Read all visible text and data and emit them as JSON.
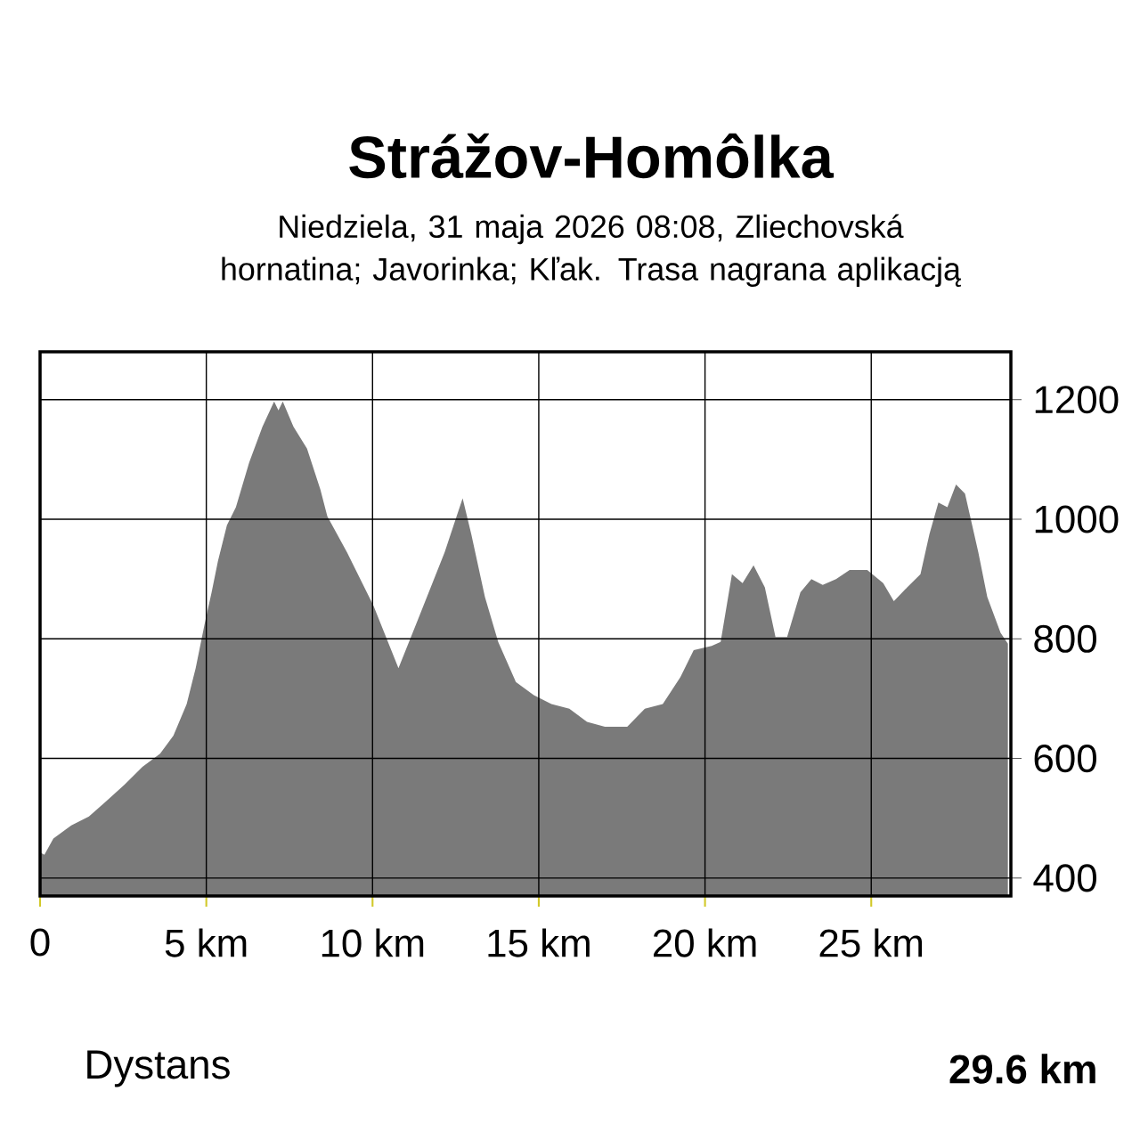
{
  "chart_data": {
    "type": "area",
    "title": "Strážov-Homôlka",
    "subtitle": "Niedziela, 31 maja 2026 08:08, Zliechovská hornatina; Javorinka; Kľak. Trasa nagrana aplikacją",
    "annotations": [
      "Dystans",
      "29.6 km"
    ],
    "x": [
      0,
      0.13,
      0.4,
      0.94,
      1.47,
      2.0,
      2.54,
      3.08,
      3.61,
      4.01,
      4.41,
      4.68,
      4.95,
      5.16,
      5.35,
      5.62,
      5.89,
      6.29,
      6.69,
      7.04,
      7.17,
      7.3,
      7.62,
      8.03,
      8.43,
      8.64,
      9.23,
      10.03,
      10.78,
      11.37,
      12.17,
      12.71,
      12.97,
      13.38,
      13.78,
      14.31,
      14.85,
      15.38,
      15.92,
      16.45,
      16.99,
      17.66,
      18.19,
      18.73,
      19.26,
      19.66,
      20.2,
      20.47,
      20.81,
      21.13,
      21.46,
      21.8,
      22.12,
      22.47,
      22.87,
      23.2,
      23.54,
      23.94,
      24.35,
      24.88,
      25.36,
      25.68,
      26.08,
      26.48,
      26.75,
      27.02,
      27.29,
      27.55,
      27.82,
      28.22,
      28.49,
      28.89,
      29.11
    ],
    "values": [
      443,
      439,
      466,
      488,
      503,
      529,
      556,
      586,
      608,
      638,
      691,
      751,
      825,
      878,
      930,
      990,
      1020,
      1095,
      1155,
      1197,
      1182,
      1197,
      1155,
      1118,
      1050,
      1005,
      945,
      855,
      751,
      833,
      945,
      1035,
      975,
      870,
      795,
      728,
      706,
      691,
      683,
      661,
      653,
      653,
      683,
      691,
      736,
      781,
      788,
      795,
      908,
      893,
      923,
      886,
      803,
      803,
      878,
      900,
      890,
      900,
      915,
      915,
      893,
      863,
      886,
      908,
      975,
      1028,
      1020,
      1058,
      1043,
      945,
      870,
      810,
      792
    ],
    "color": "#7a7a7a",
    "xlim": [
      0,
      29.2
    ],
    "ylim": [
      370,
      1280
    ],
    "xticks": [
      0,
      {
        "value": 5,
        "label": "5 km"
      },
      {
        "value": 10,
        "label": "10 km"
      },
      {
        "value": 15,
        "label": "15 km"
      },
      {
        "value": 20,
        "label": "20 km"
      },
      {
        "value": 25,
        "label": "25 km"
      }
    ],
    "yticks": [
      400,
      600,
      800,
      1000,
      1200
    ],
    "grid": true
  }
}
